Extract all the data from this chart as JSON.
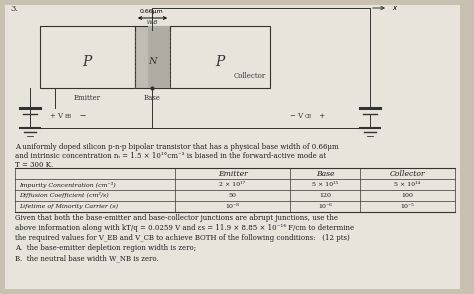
{
  "background_color": "#d8d0c0",
  "fig_bg": "#c8c0b0",
  "page_color": "#e8e4dc",
  "problem_number": "3.",
  "diagram": {
    "arrow_label": "0.66μm",
    "w_label": "W_NB",
    "emitter_label": "Emitter",
    "base_label": "Base",
    "collector_label": "Collector",
    "p_left": "P",
    "n_mid": "N",
    "p_right": "P",
    "veb_label": "+ V_EB −",
    "vcb_label": "− V_CB +"
  },
  "desc_line1": "A uniformly doped silicon p-n-p bipolar transistor that has a physical base width of 0.66μm",
  "desc_line2": "and intrinsic concentration nᵢ = 1.5 × 10¹°cm⁻³ is biased in the forward-active mode at",
  "desc_line3": "T = 300 K.",
  "table_headers": [
    "",
    "Emitter",
    "Base",
    "Collector"
  ],
  "table_row1_label": "Impurity Concentration (cm⁻³)",
  "table_row2_label": "Diffusion Coefficient (cm²/s)",
  "table_row3_label": "Lifetime of Minority Carrier (s)",
  "emitter_vals": [
    "2 × 10¹⁷",
    "50",
    "10⁻⁸"
  ],
  "base_vals": [
    "5 × 10¹⁵",
    "120",
    "10⁻⁶"
  ],
  "collector_vals": [
    "5 × 10¹⁴",
    "100",
    "10⁻⁵"
  ],
  "prob_line1": "Given that both the base-emitter and base-collector junctions are abrupt junctions, use the",
  "prob_line2": "above information along with kT/q = 0.0259 V and εs = 11.9 × 8.85 × 10⁻¹⁴ F/cm to determine",
  "prob_line3": "the required values for V_EB and V_CB to achieve BOTH of the following conditions:   (12 pts)",
  "prob_line4": "A.  the base-emitter depletion region width is zero;",
  "prob_line5": "B.  the neutral base width W_NB is zero."
}
